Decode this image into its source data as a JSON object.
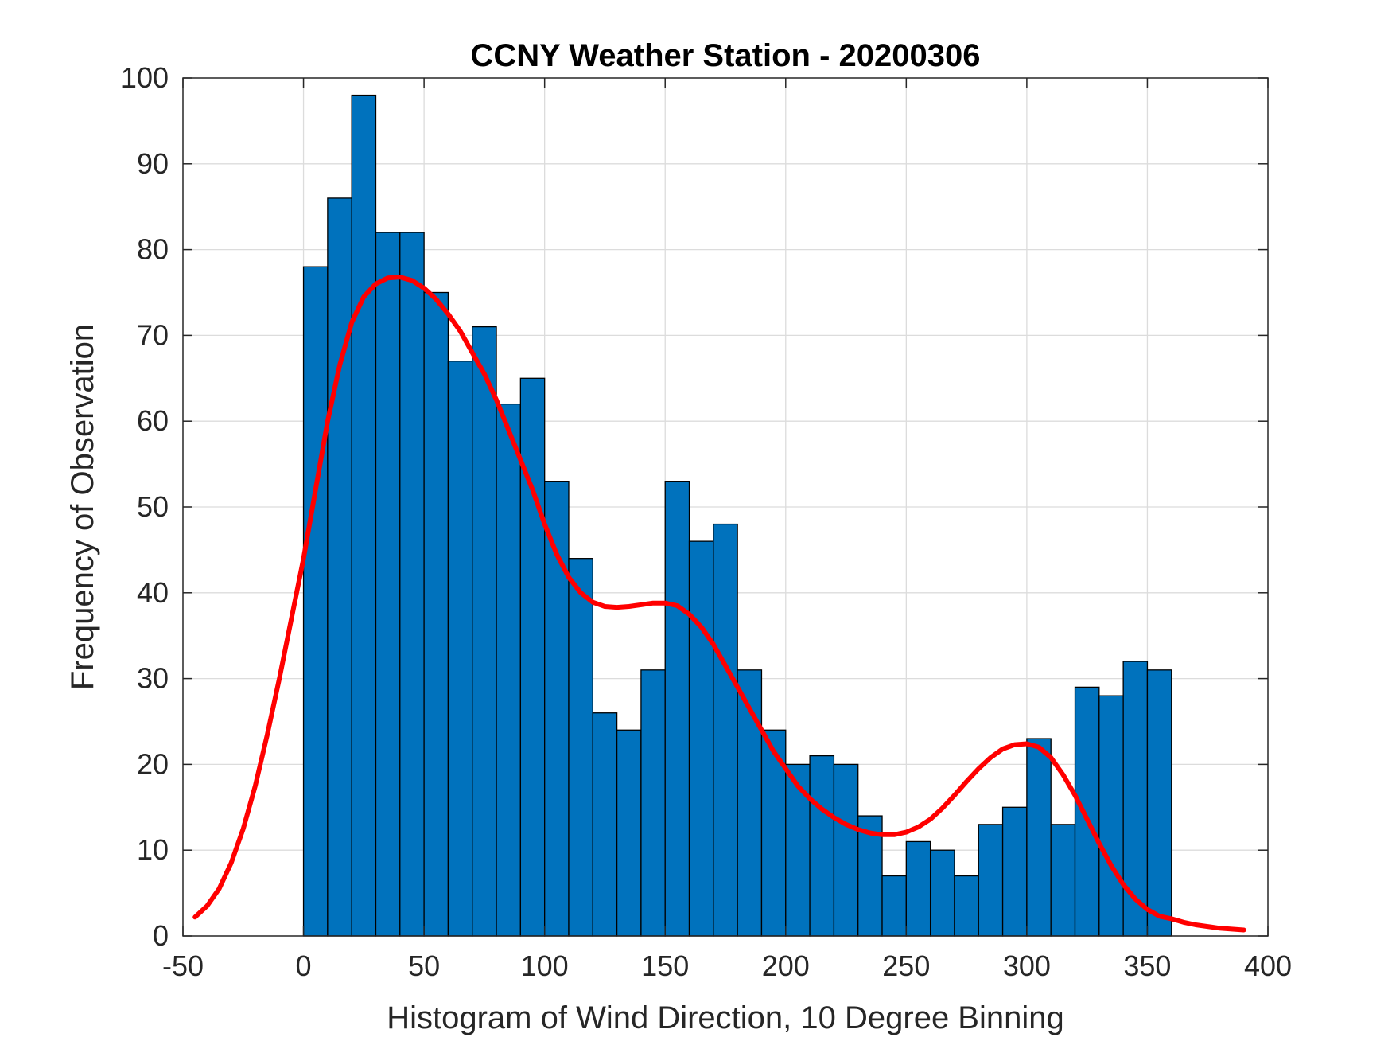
{
  "chart_data": {
    "type": "bar",
    "title": "CCNY Weather Station - 20200306",
    "xlabel": "Histogram of Wind Direction, 10 Degree Binning",
    "ylabel": "Frequency of Observation",
    "xlim": [
      -50,
      400
    ],
    "ylim": [
      0,
      100
    ],
    "xticks": [
      -50,
      0,
      50,
      100,
      150,
      200,
      250,
      300,
      350,
      400
    ],
    "yticks": [
      0,
      10,
      20,
      30,
      40,
      50,
      60,
      70,
      80,
      90,
      100
    ],
    "grid": true,
    "bin_width": 10,
    "bin_edges_start": 0,
    "values": [
      78,
      86,
      98,
      82,
      82,
      75,
      67,
      71,
      62,
      65,
      53,
      44,
      26,
      24,
      31,
      53,
      46,
      48,
      31,
      24,
      20,
      21,
      20,
      14,
      7,
      11,
      10,
      7,
      13,
      15,
      23,
      13,
      29,
      28,
      32,
      31
    ],
    "bar_color": "#0072BD",
    "fit_curve": {
      "name": "density fit",
      "color": "#FF0000",
      "x": [
        -45,
        -40,
        -35,
        -30,
        -25,
        -20,
        -15,
        -10,
        -5,
        0,
        5,
        10,
        15,
        20,
        25,
        30,
        35,
        40,
        45,
        50,
        55,
        60,
        65,
        70,
        75,
        80,
        85,
        90,
        95,
        100,
        105,
        110,
        115,
        120,
        125,
        130,
        135,
        140,
        145,
        150,
        155,
        160,
        165,
        170,
        175,
        180,
        185,
        190,
        195,
        200,
        205,
        210,
        215,
        220,
        225,
        230,
        235,
        240,
        245,
        250,
        255,
        260,
        265,
        270,
        275,
        280,
        285,
        290,
        295,
        300,
        305,
        310,
        315,
        320,
        325,
        330,
        335,
        340,
        345,
        350,
        355,
        360,
        365,
        370,
        375,
        380,
        385,
        390
      ],
      "y": [
        2.2,
        3.5,
        5.5,
        8.5,
        12.5,
        17.5,
        23.5,
        30.0,
        37.0,
        44.0,
        52.0,
        60.0,
        66.5,
        71.5,
        74.5,
        76.0,
        76.7,
        76.8,
        76.4,
        75.5,
        74.2,
        72.5,
        70.5,
        68.0,
        65.5,
        62.5,
        59.0,
        55.5,
        52.0,
        48.0,
        44.5,
        41.8,
        40.0,
        38.9,
        38.4,
        38.3,
        38.4,
        38.6,
        38.8,
        38.8,
        38.5,
        37.5,
        36.0,
        34.0,
        31.5,
        29.0,
        26.5,
        24.0,
        21.5,
        19.5,
        17.5,
        16.0,
        14.8,
        13.8,
        13.0,
        12.4,
        12.0,
        11.8,
        11.8,
        12.1,
        12.7,
        13.6,
        14.9,
        16.4,
        18.0,
        19.5,
        20.8,
        21.8,
        22.3,
        22.4,
        22.0,
        20.8,
        18.8,
        16.4,
        13.6,
        10.8,
        8.2,
        6.0,
        4.3,
        3.1,
        2.3,
        2.0,
        1.6,
        1.3,
        1.1,
        0.9,
        0.8,
        0.7
      ]
    }
  }
}
